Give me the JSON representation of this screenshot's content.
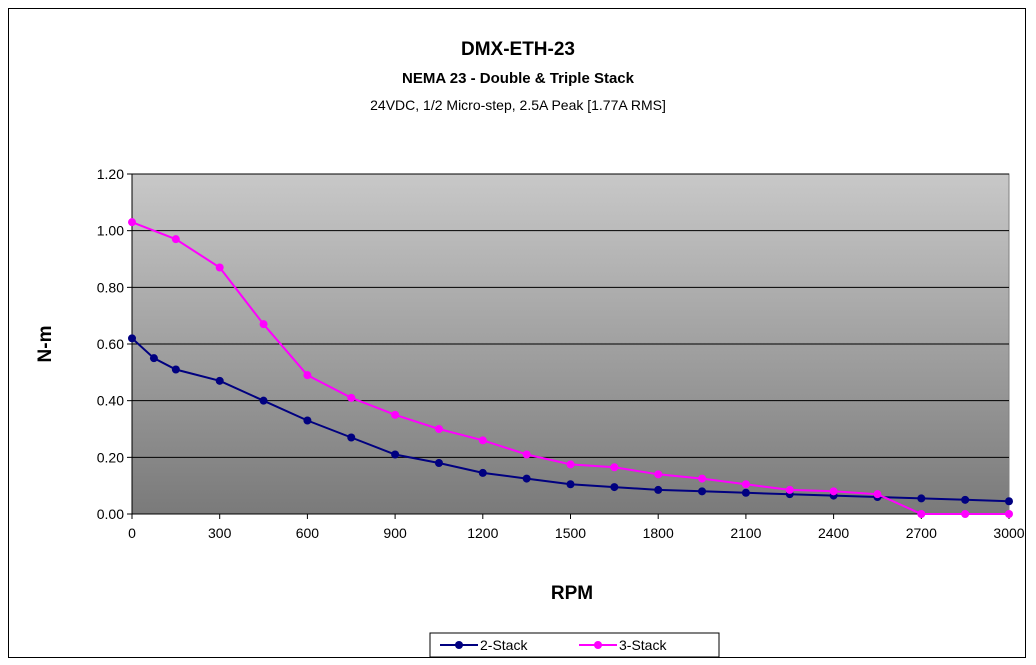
{
  "chart_data": {
    "type": "line",
    "title": "DMX-ETH-23",
    "subtitle": "NEMA 23 - Double & Triple Stack",
    "subtitle2": "24VDC, 1/2 Micro-step, 2.5A Peak [1.77A RMS]",
    "xlabel": "RPM",
    "ylabel": "N-m",
    "xlim": [
      0,
      3000
    ],
    "ylim": [
      0,
      1.2
    ],
    "x_ticks": [
      "0",
      "300",
      "600",
      "900",
      "1200",
      "1500",
      "1800",
      "2100",
      "2400",
      "2700",
      "3000"
    ],
    "y_ticks": [
      "0.00",
      "0.20",
      "0.40",
      "0.60",
      "0.80",
      "1.00",
      "1.20"
    ],
    "grid": "horizontal",
    "legend_position": "bottom",
    "series": [
      {
        "name": "2-Stack",
        "color": "#000080",
        "x": [
          0,
          75,
          150,
          300,
          450,
          600,
          750,
          900,
          1050,
          1200,
          1350,
          1500,
          1650,
          1800,
          1950,
          2100,
          2250,
          2400,
          2550,
          2700,
          2850,
          3000
        ],
        "y": [
          0.62,
          0.55,
          0.51,
          0.47,
          0.4,
          0.33,
          0.27,
          0.21,
          0.18,
          0.145,
          0.125,
          0.105,
          0.095,
          0.085,
          0.08,
          0.075,
          0.07,
          0.065,
          0.06,
          0.055,
          0.05,
          0.045
        ]
      },
      {
        "name": "3-Stack",
        "color": "#ff00ff",
        "x": [
          0,
          150,
          300,
          450,
          600,
          750,
          900,
          1050,
          1200,
          1350,
          1500,
          1650,
          1800,
          1950,
          2100,
          2250,
          2400,
          2550,
          2700,
          2850,
          3000
        ],
        "y": [
          1.03,
          0.97,
          0.87,
          0.67,
          0.49,
          0.41,
          0.35,
          0.3,
          0.26,
          0.21,
          0.175,
          0.165,
          0.14,
          0.125,
          0.105,
          0.085,
          0.08,
          0.07,
          0.0,
          0.0,
          0.0
        ]
      }
    ]
  }
}
